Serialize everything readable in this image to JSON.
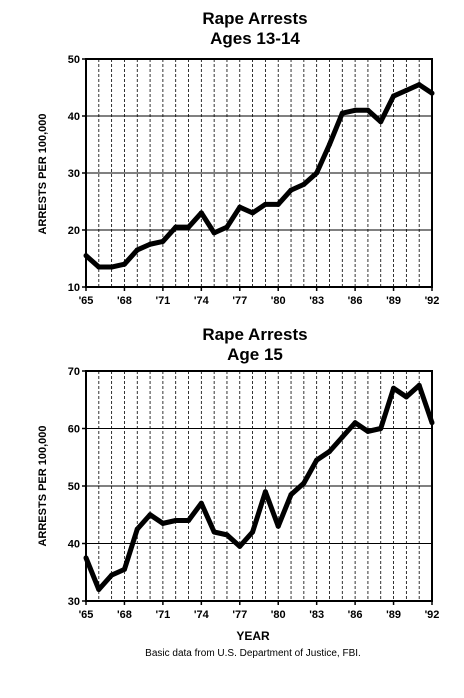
{
  "source_note": "Basic data from U.S. Department of Justice, FBI.",
  "shared_xlabel": "YEAR",
  "chart_data": [
    {
      "type": "line",
      "title": "Rape Arrests",
      "subtitle": "Ages 13-14",
      "ylabel": "ARRESTS PER 100,000",
      "xlim": [
        1965,
        1992
      ],
      "ylim": [
        10,
        50
      ],
      "y_ticks": [
        10,
        20,
        30,
        40,
        50
      ],
      "x_ticks": [
        1965,
        1968,
        1971,
        1974,
        1977,
        1980,
        1983,
        1986,
        1989,
        1992
      ],
      "x_tick_labels": [
        "'65",
        "'68",
        "'71",
        "'74",
        "'77",
        "'80",
        "'83",
        "'86",
        "'89",
        "'92"
      ],
      "grid": true,
      "x": [
        1965,
        1966,
        1967,
        1968,
        1969,
        1970,
        1971,
        1972,
        1973,
        1974,
        1975,
        1976,
        1977,
        1978,
        1979,
        1980,
        1981,
        1982,
        1983,
        1984,
        1985,
        1986,
        1987,
        1988,
        1989,
        1990,
        1991,
        1992
      ],
      "values": [
        15.5,
        13.5,
        13.5,
        14,
        16.5,
        17.5,
        18,
        20.5,
        20.5,
        23,
        19.5,
        20.5,
        24,
        23,
        24.5,
        24.5,
        27,
        28,
        30,
        35,
        40.5,
        41,
        41,
        39,
        43.5,
        44.5,
        45.5,
        44
      ]
    },
    {
      "type": "line",
      "title": "Rape Arrests",
      "subtitle": "Age 15",
      "ylabel": "ARRESTS PER 100,000",
      "xlim": [
        1965,
        1992
      ],
      "ylim": [
        30,
        70
      ],
      "y_ticks": [
        30,
        40,
        50,
        60,
        70
      ],
      "x_ticks": [
        1965,
        1968,
        1971,
        1974,
        1977,
        1980,
        1983,
        1986,
        1989,
        1992
      ],
      "x_tick_labels": [
        "'65",
        "'68",
        "'71",
        "'74",
        "'77",
        "'80",
        "'83",
        "'86",
        "'89",
        "'92"
      ],
      "grid": true,
      "x": [
        1965,
        1966,
        1967,
        1968,
        1969,
        1970,
        1971,
        1972,
        1973,
        1974,
        1975,
        1976,
        1977,
        1978,
        1979,
        1980,
        1981,
        1982,
        1983,
        1984,
        1985,
        1986,
        1987,
        1988,
        1989,
        1990,
        1991,
        1992
      ],
      "values": [
        37.5,
        32,
        34.5,
        35.5,
        42.5,
        45,
        43.5,
        44,
        44,
        47,
        42,
        41.5,
        39.5,
        42,
        49,
        43,
        48.5,
        50.5,
        54.5,
        56,
        58.5,
        61,
        59.5,
        60,
        67,
        65.5,
        67.5,
        61
      ]
    }
  ]
}
